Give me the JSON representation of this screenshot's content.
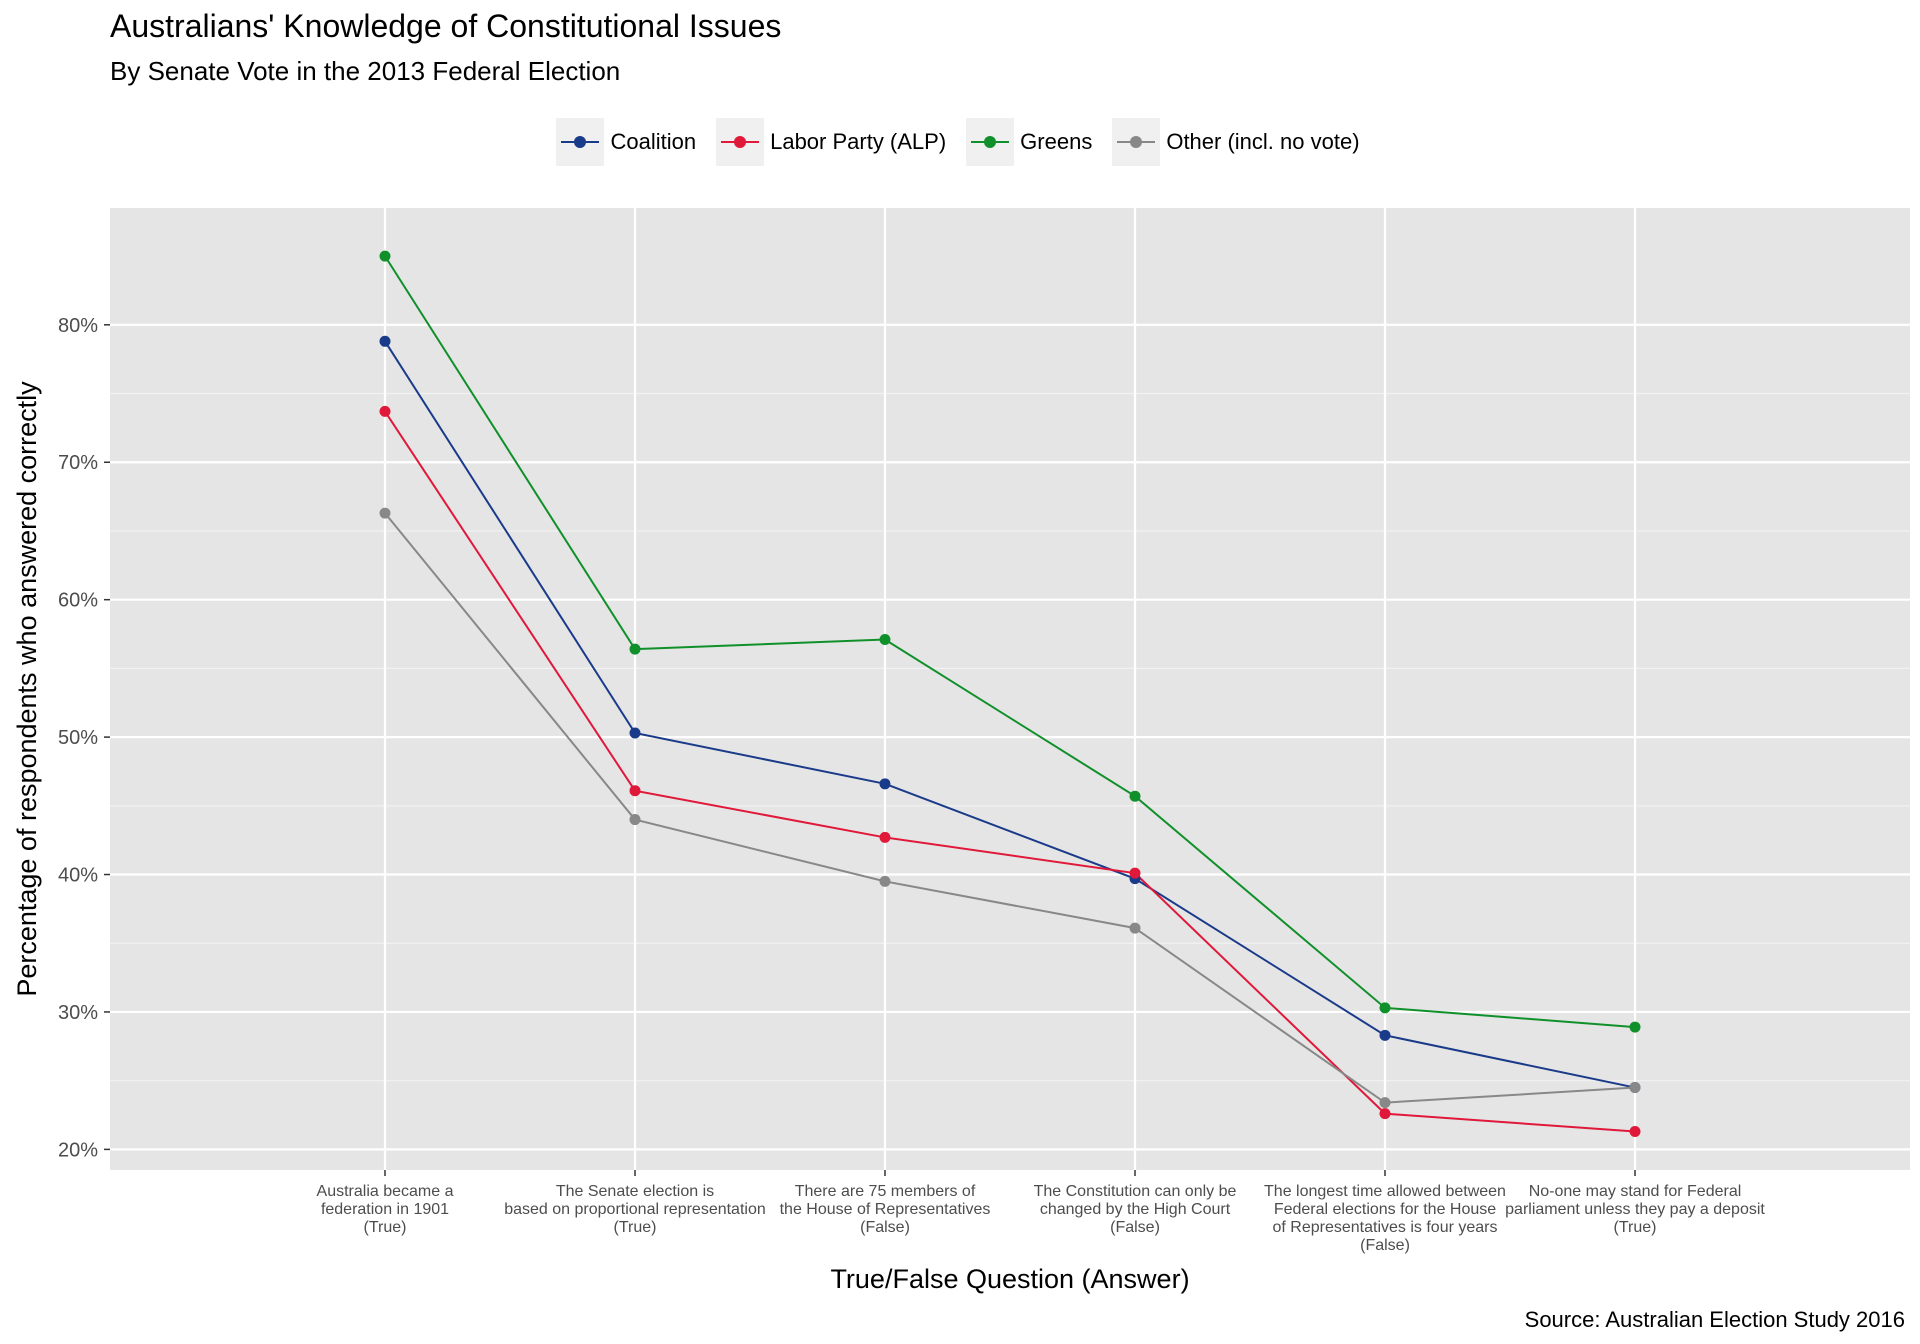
{
  "chart_data": {
    "type": "line",
    "title": "Australians' Knowledge of Constitutional Issues",
    "subtitle": "By Senate Vote in the 2013 Federal Election",
    "xlabel": "True/False Question (Answer)",
    "ylabel": "Percentage of respondents who answered correctly",
    "source": "Source: Australian Election Study 2016",
    "ylim": [
      18.5,
      88.5
    ],
    "yticks": [
      20,
      30,
      40,
      50,
      60,
      70,
      80
    ],
    "ytick_labels": [
      "20%",
      "30%",
      "40%",
      "50%",
      "60%",
      "70%",
      "80%"
    ],
    "categories": [
      [
        "Australia became a",
        "federation in 1901",
        "(True)"
      ],
      [
        "The Senate election is",
        "based on proportional representation",
        "(True)"
      ],
      [
        "There are 75 members of",
        "the House of Representatives",
        "(False)"
      ],
      [
        "The Constitution can only be",
        "changed by the High Court",
        "(False)"
      ],
      [
        "The longest time allowed between",
        "Federal elections for the House",
        "of Representatives is four years",
        "(False)"
      ],
      [
        "No-one may stand for Federal",
        "parliament unless they pay a deposit",
        "(True)"
      ]
    ],
    "legend_position": "top",
    "grid": true,
    "series": [
      {
        "name": "Coalition",
        "color": "#1a3a8a",
        "values": [
          78.8,
          50.3,
          46.6,
          39.7,
          28.3,
          24.5
        ]
      },
      {
        "name": "Labor Party (ALP)",
        "color": "#e0183a",
        "values": [
          73.7,
          46.1,
          42.7,
          40.1,
          22.6,
          21.3
        ]
      },
      {
        "name": "Greens",
        "color": "#10902a",
        "values": [
          85.0,
          56.4,
          57.1,
          45.7,
          30.3,
          28.9
        ]
      },
      {
        "name": "Other (incl. no vote)",
        "color": "#888888",
        "values": [
          66.3,
          44.0,
          39.5,
          36.1,
          23.4,
          24.5
        ]
      }
    ]
  }
}
